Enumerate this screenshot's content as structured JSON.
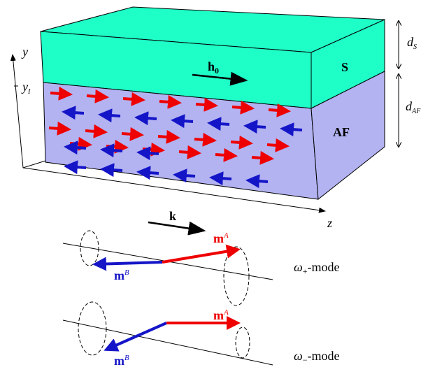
{
  "axes": {
    "y": "y",
    "y_interface": {
      "base": "y",
      "sub": "I"
    },
    "z": "z"
  },
  "layers": {
    "top": "S",
    "bottom": "AF"
  },
  "field": {
    "base": "h",
    "sub": "0"
  },
  "thickness": {
    "top": {
      "base": "d",
      "sub": "S"
    },
    "bottom": {
      "base": "d",
      "sub": "AF"
    }
  },
  "wavevector": "k",
  "modes": [
    {
      "label": {
        "base": "ω",
        "sub": "+",
        "rest": "-mode"
      },
      "mA": {
        "base": "m",
        "sup": "A"
      },
      "mB": {
        "base": "m",
        "sup": "B"
      }
    },
    {
      "label": {
        "base": "ω",
        "sub": "−",
        "rest": "-mode"
      },
      "mA": {
        "base": "m",
        "sup": "A"
      },
      "mB": {
        "base": "m",
        "sup": "B"
      }
    }
  ]
}
